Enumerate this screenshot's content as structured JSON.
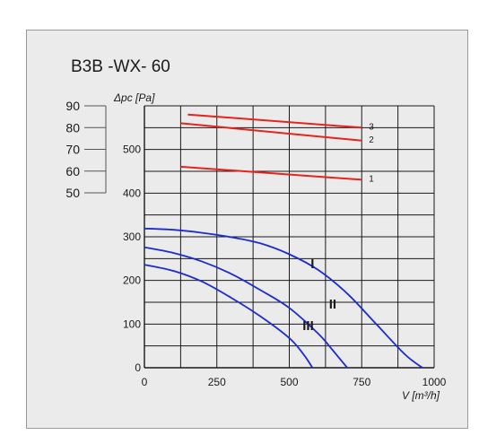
{
  "title": "B3B -WX- 60",
  "chart_data": {
    "type": "line",
    "xlabel": "V [m³/h]",
    "ylabel": "Δpc [Pa]",
    "xlim": [
      0,
      1000
    ],
    "ylim": [
      0,
      600
    ],
    "x_ticks": [
      "0",
      "250",
      "500",
      "750",
      "1000"
    ],
    "y_ticks": [
      "0",
      "100",
      "200",
      "300",
      "400",
      "500"
    ],
    "grid": true,
    "noise_axis": {
      "ticks": [
        "50",
        "60",
        "70",
        "80",
        "90"
      ],
      "range": [
        50,
        90
      ]
    },
    "noise_series": [
      {
        "name": "1",
        "x": [
          125,
          750
        ],
        "y": [
          62,
          56
        ]
      },
      {
        "name": "2",
        "x": [
          125,
          750
        ],
        "y": [
          82,
          74
        ]
      },
      {
        "name": "3",
        "x": [
          150,
          750
        ],
        "y": [
          86,
          80
        ]
      }
    ],
    "pressure_series": [
      {
        "name": "I",
        "x": [
          0,
          100,
          200,
          300,
          400,
          500,
          600,
          700,
          800,
          900,
          960
        ],
        "y": [
          319,
          316,
          309,
          299,
          285,
          260,
          224,
          170,
          100,
          30,
          0
        ]
      },
      {
        "name": "II",
        "x": [
          0,
          100,
          200,
          300,
          400,
          500,
          600,
          650,
          700
        ],
        "y": [
          276,
          263,
          243,
          215,
          178,
          137,
          78,
          40,
          0
        ]
      },
      {
        "name": "III",
        "x": [
          0,
          100,
          200,
          300,
          400,
          500,
          550,
          580
        ],
        "y": [
          236,
          222,
          197,
          160,
          118,
          68,
          30,
          0
        ]
      }
    ],
    "colors": {
      "noise": "#e8231c",
      "pressure": "#1b2bd0",
      "grid": "#1a1a1a"
    }
  }
}
